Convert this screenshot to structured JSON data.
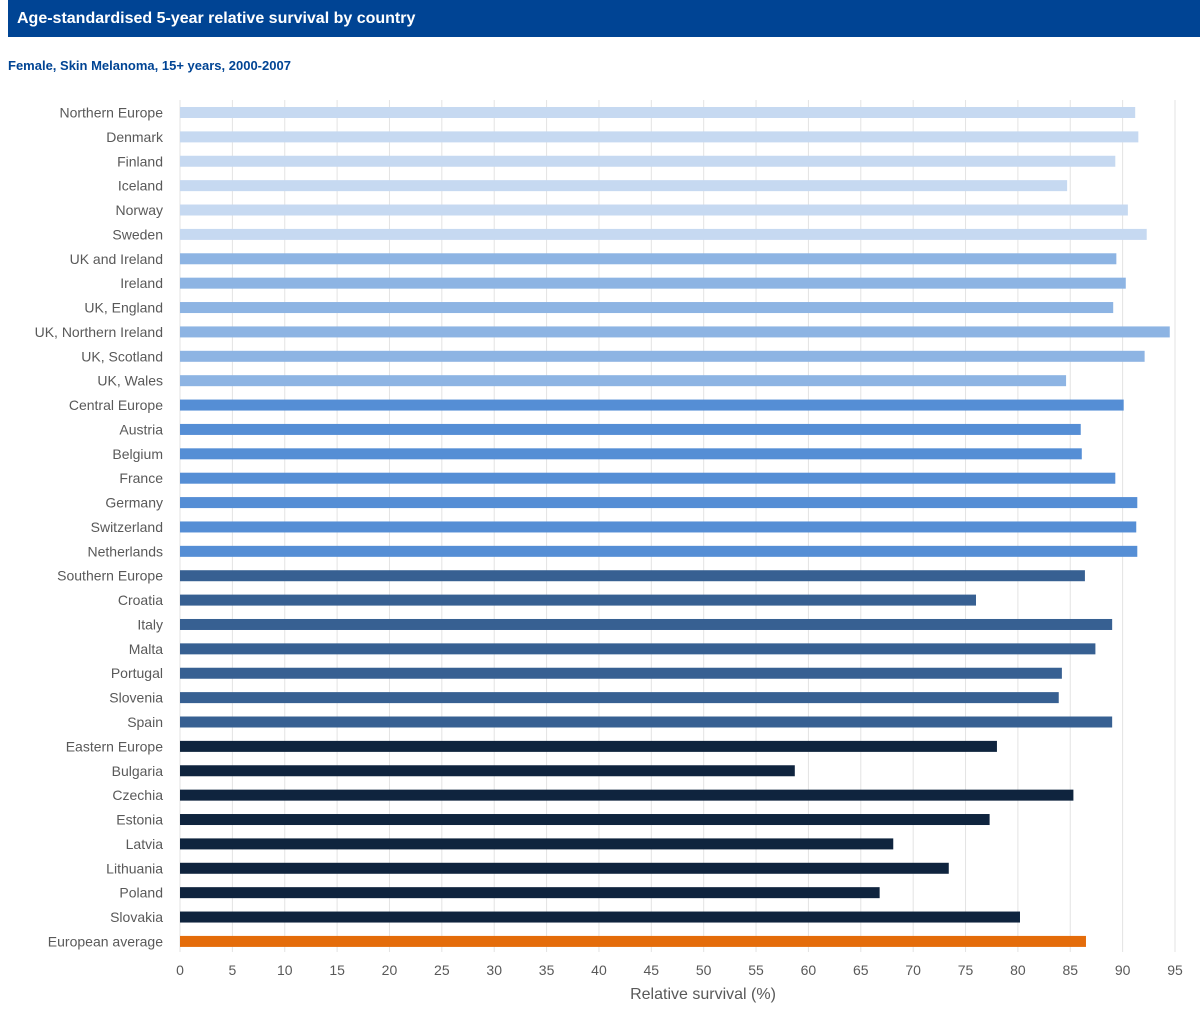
{
  "header": {
    "title": "Age-standardised 5-year relative survival by country"
  },
  "subtitle": "Female, Skin Melanoma, 15+ years, 2000-2007",
  "colors": {
    "header_bg": "#004494",
    "subtitle_text": "#004494",
    "northern_europe": "#c6d9f1",
    "uk_and_ireland": "#8db4e3",
    "central_europe": "#558ed5",
    "southern_europe": "#376092",
    "eastern_europe": "#0f243e",
    "european_average": "#e46c0a"
  },
  "chart_data": {
    "type": "bar",
    "orientation": "horizontal",
    "title": "Age-standardised 5-year relative survival by country",
    "subtitle": "Female, Skin Melanoma, 15+ years, 2000-2007",
    "xlabel": "Relative survival (%)",
    "ylabel": "",
    "xlim": [
      0,
      95
    ],
    "xticks": [
      0,
      5,
      10,
      15,
      20,
      25,
      30,
      35,
      40,
      45,
      50,
      55,
      60,
      65,
      70,
      75,
      80,
      85,
      90,
      95
    ],
    "grid": "vertical",
    "categories": [
      "Northern Europe",
      "Denmark",
      "Finland",
      "Iceland",
      "Norway",
      "Sweden",
      "UK and Ireland",
      "Ireland",
      "UK, England",
      "UK, Northern Ireland",
      "UK, Scotland",
      "UK, Wales",
      "Central Europe",
      "Austria",
      "Belgium",
      "France",
      "Germany",
      "Switzerland",
      "Netherlands",
      "Southern Europe",
      "Croatia",
      "Italy",
      "Malta",
      "Portugal",
      "Slovenia",
      "Spain",
      "Eastern Europe",
      "Bulgaria",
      "Czechia",
      "Estonia",
      "Latvia",
      "Lithuania",
      "Poland",
      "Slovakia",
      "European average"
    ],
    "values": [
      91.2,
      91.5,
      89.3,
      84.7,
      90.5,
      92.3,
      89.4,
      90.3,
      89.1,
      94.5,
      92.1,
      84.6,
      90.1,
      86.0,
      86.1,
      89.3,
      91.4,
      91.3,
      91.4,
      86.4,
      76.0,
      89.0,
      87.4,
      84.2,
      83.9,
      89.0,
      78.0,
      58.7,
      85.3,
      77.3,
      68.1,
      73.4,
      66.8,
      80.2,
      86.5
    ],
    "groups": [
      "northern_europe",
      "northern_europe",
      "northern_europe",
      "northern_europe",
      "northern_europe",
      "northern_europe",
      "uk_and_ireland",
      "uk_and_ireland",
      "uk_and_ireland",
      "uk_and_ireland",
      "uk_and_ireland",
      "uk_and_ireland",
      "central_europe",
      "central_europe",
      "central_europe",
      "central_europe",
      "central_europe",
      "central_europe",
      "central_europe",
      "southern_europe",
      "southern_europe",
      "southern_europe",
      "southern_europe",
      "southern_europe",
      "southern_europe",
      "southern_europe",
      "eastern_europe",
      "eastern_europe",
      "eastern_europe",
      "eastern_europe",
      "eastern_europe",
      "eastern_europe",
      "eastern_europe",
      "eastern_europe",
      "european_average"
    ]
  }
}
